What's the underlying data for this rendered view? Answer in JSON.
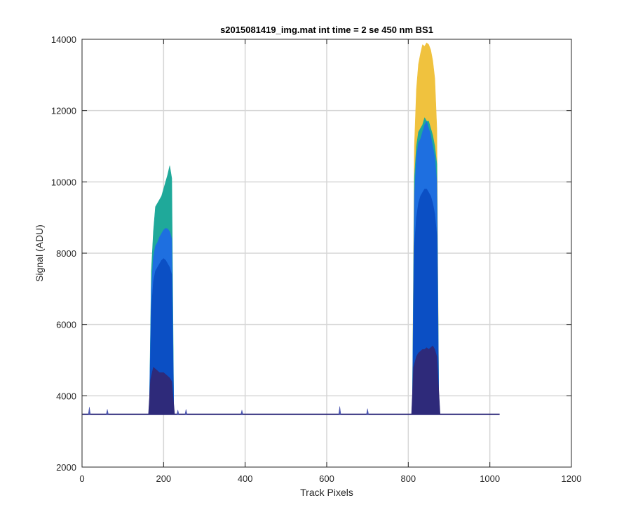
{
  "chart_data": {
    "type": "area",
    "title": "s2015081419_img.mat int time = 2 se  450 nm BS1",
    "xlabel": "Track Pixels",
    "ylabel": "Signal (ADU)",
    "xlim": [
      0,
      1200
    ],
    "ylim": [
      2000,
      14000
    ],
    "xticks": [
      0,
      200,
      400,
      600,
      800,
      1000,
      1200
    ],
    "yticks": [
      2000,
      4000,
      6000,
      8000,
      10000,
      12000,
      14000
    ],
    "xtick_labels": [
      "0",
      "200",
      "400",
      "600",
      "800",
      "1000",
      "1200"
    ],
    "ytick_labels": [
      "2000",
      "4000",
      "6000",
      "8000",
      "10000",
      "12000",
      "14000"
    ],
    "grid": true,
    "baseline": 3480,
    "x_extent": [
      1,
      1024
    ],
    "series": [
      {
        "color": "#f0c23e",
        "peaks": [
          {
            "x": [
              810,
              815,
              820,
              825,
              830,
              835,
              840,
              845,
              850,
              855,
              860,
              865,
              870,
              875
            ],
            "y": [
              3480,
              11000,
              12600,
              13300,
              13600,
              13850,
              13800,
              13900,
              13850,
              13700,
              13400,
              12900,
              11500,
              3480
            ]
          }
        ]
      },
      {
        "color": "#1fa99a",
        "peaks": [
          {
            "x": [
              165,
              170,
              175,
              180,
              185,
              190,
              195,
              200,
              205,
              210,
              215,
              220,
              225
            ],
            "y": [
              3480,
              7500,
              8600,
              9300,
              9400,
              9500,
              9600,
              9800,
              10000,
              10200,
              10450,
              10100,
              3480
            ]
          },
          {
            "x": [
              810,
              815,
              820,
              825,
              830,
              835,
              840,
              845,
              850,
              855,
              860,
              865,
              870,
              875
            ],
            "y": [
              3480,
              10100,
              11000,
              11400,
              11500,
              11600,
              11800,
              11700,
              11700,
              11500,
              11300,
              11000,
              10500,
              3480
            ]
          }
        ]
      },
      {
        "color": "#1e6fe0",
        "peaks": [
          {
            "x": [
              165,
              170,
              175,
              180,
              185,
              190,
              195,
              200,
              205,
              210,
              215,
              220,
              225
            ],
            "y": [
              3480,
              7000,
              7900,
              8200,
              8300,
              8450,
              8550,
              8650,
              8700,
              8680,
              8600,
              8400,
              3480
            ]
          },
          {
            "x": [
              810,
              815,
              820,
              825,
              830,
              835,
              840,
              845,
              850,
              855,
              860,
              865,
              870,
              875
            ],
            "y": [
              3480,
              9600,
              10700,
              11100,
              11200,
              11400,
              11600,
              11700,
              11500,
              11300,
              11000,
              10700,
              10000,
              3480
            ]
          }
        ]
      },
      {
        "color": "#0b4fc4",
        "peaks": [
          {
            "x": [
              165,
              170,
              175,
              180,
              185,
              190,
              195,
              200,
              205,
              210,
              215,
              220,
              225
            ],
            "y": [
              3480,
              6400,
              7200,
              7500,
              7600,
              7700,
              7800,
              7850,
              7800,
              7700,
              7600,
              7400,
              3480
            ]
          },
          {
            "x": [
              810,
              815,
              820,
              825,
              830,
              835,
              840,
              845,
              850,
              855,
              860,
              865,
              870,
              875
            ],
            "y": [
              3480,
              8200,
              9000,
              9400,
              9600,
              9700,
              9800,
              9800,
              9700,
              9600,
              9400,
              9100,
              8500,
              3480
            ]
          }
        ]
      },
      {
        "color": "#2e2a7a",
        "peaks": [
          {
            "x": [
              163,
              168,
              175,
              180,
              185,
              190,
              195,
              200,
              205,
              210,
              215,
              220,
              227
            ],
            "y": [
              3480,
              4450,
              4800,
              4750,
              4700,
              4650,
              4650,
              4650,
              4600,
              4550,
              4500,
              4400,
              3480
            ]
          },
          {
            "x": [
              808,
              813,
              820,
              825,
              830,
              835,
              840,
              845,
              850,
              855,
              860,
              865,
              870,
              878
            ],
            "y": [
              3480,
              4800,
              5100,
              5200,
              5250,
              5300,
              5300,
              5350,
              5300,
              5350,
              5400,
              5300,
              5100,
              3480
            ]
          }
        ]
      }
    ],
    "spikes": [
      {
        "x": 18,
        "y": 3680
      },
      {
        "x": 62,
        "y": 3620
      },
      {
        "x": 235,
        "y": 3600
      },
      {
        "x": 255,
        "y": 3620
      },
      {
        "x": 392,
        "y": 3600
      },
      {
        "x": 632,
        "y": 3700
      },
      {
        "x": 700,
        "y": 3640
      }
    ]
  }
}
